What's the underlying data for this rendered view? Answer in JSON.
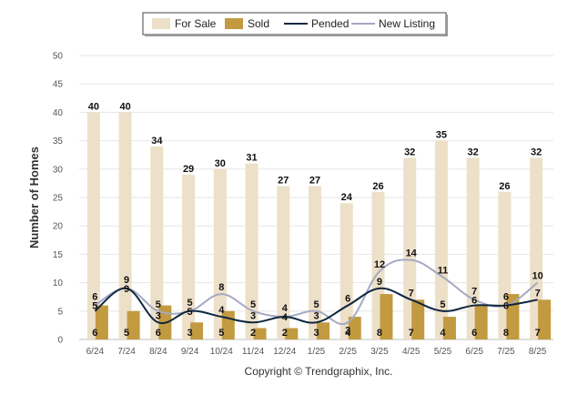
{
  "chart_data": {
    "type": "bar",
    "ylabel": "Number of Homes",
    "ylim": [
      0,
      50
    ],
    "yticks": [
      0,
      5,
      10,
      15,
      20,
      25,
      30,
      35,
      40,
      45,
      50
    ],
    "categories": [
      "6/24",
      "7/24",
      "8/24",
      "9/24",
      "10/24",
      "11/24",
      "12/24",
      "1/25",
      "2/25",
      "3/25",
      "4/25",
      "5/25",
      "6/25",
      "7/25",
      "8/25"
    ],
    "series": [
      {
        "name": "For Sale",
        "kind": "bar",
        "color": "#ede0c8",
        "values": [
          40,
          40,
          34,
          29,
          30,
          31,
          27,
          27,
          24,
          26,
          32,
          35,
          32,
          26,
          32
        ]
      },
      {
        "name": "Sold",
        "kind": "bar",
        "color": "#c29a3f",
        "values": [
          6,
          5,
          6,
          3,
          5,
          2,
          2,
          3,
          4,
          8,
          7,
          4,
          6,
          8,
          7
        ]
      },
      {
        "name": "Pended",
        "kind": "line",
        "color": "#0f2740",
        "values": [
          5,
          9,
          3,
          5,
          4,
          3,
          4,
          3,
          6,
          9,
          7,
          5,
          6,
          6,
          7
        ]
      },
      {
        "name": "New Listing",
        "kind": "line",
        "color": "#a5a9c2",
        "values": [
          6,
          9,
          5,
          5,
          8,
          5,
          4,
          5,
          3,
          12,
          14,
          11,
          7,
          6,
          10
        ]
      }
    ],
    "legend": "top-center",
    "grid": true
  },
  "footer": {
    "copyright": "Copyright © Trendgraphix, Inc."
  }
}
